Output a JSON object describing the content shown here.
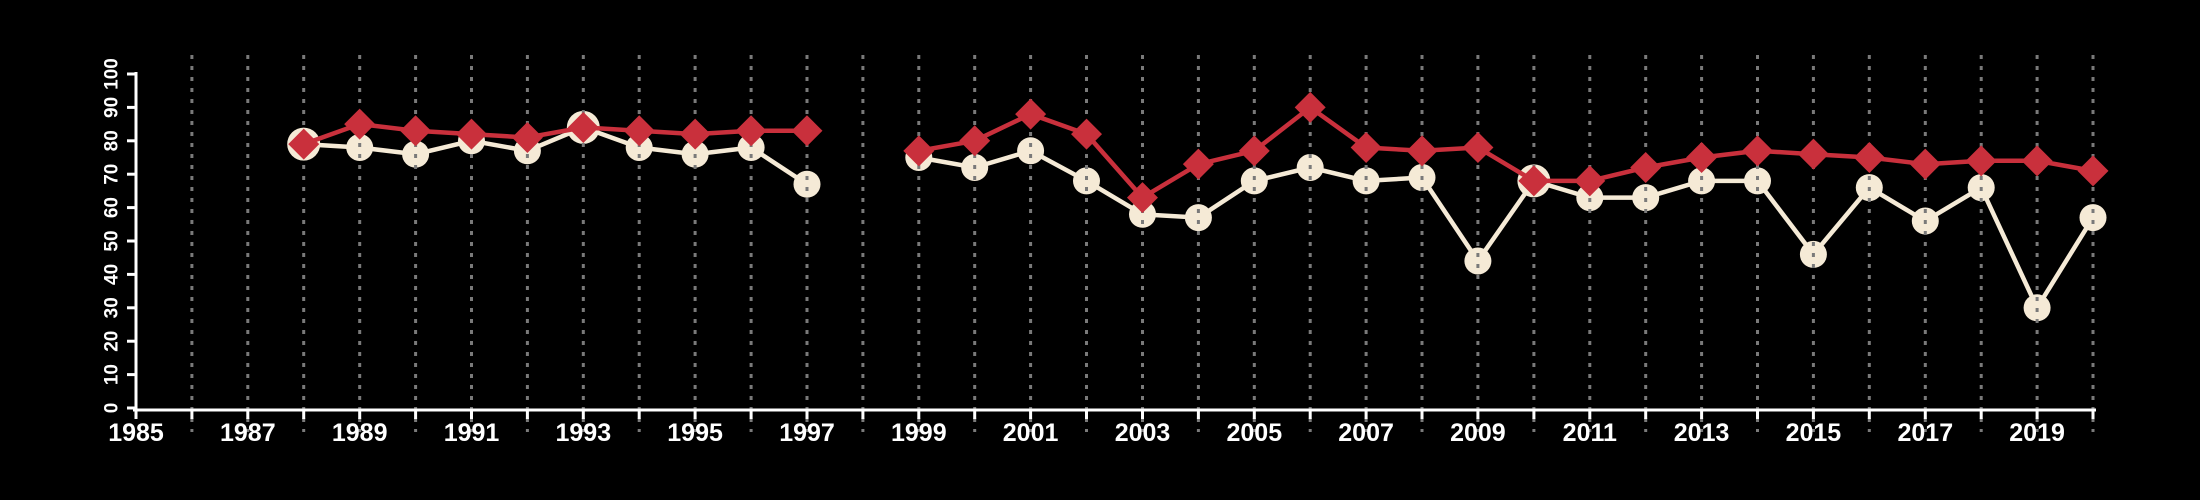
{
  "chart_data": {
    "type": "line",
    "title": "",
    "background": "#000000",
    "grid": {
      "style": "dashed-vertical",
      "color": "#7a7a7a",
      "per_year": true
    },
    "legend": "none",
    "x_axis": {
      "min": 1985,
      "max": 2020,
      "tick_every_year": true,
      "label_years": [
        1985,
        1987,
        1989,
        1991,
        1993,
        1995,
        1997,
        1999,
        2001,
        2003,
        2005,
        2007,
        2009,
        2011,
        2013,
        2015,
        2017,
        2019
      ],
      "axis_color": "#ffffff"
    },
    "y_axis": {
      "min": 0,
      "max": 100,
      "tick_values": [
        0,
        10,
        20,
        30,
        40,
        50,
        60,
        70,
        80,
        90,
        100
      ],
      "tick_labels": [
        "0",
        "10",
        "20",
        "30",
        "40",
        "50",
        "60",
        "70",
        "80",
        "90",
        "100"
      ],
      "labels_rotated": true,
      "axis_color": "#ffffff"
    },
    "data_gap_years": [
      1998
    ],
    "overlap_years": [
      1988,
      1993,
      2010
    ],
    "series": [
      {
        "name": "red-diamond-series",
        "marker": "diamond",
        "color": "#c9303c",
        "points": [
          [
            1988,
            79
          ],
          [
            1989,
            85
          ],
          [
            1990,
            83
          ],
          [
            1991,
            82
          ],
          [
            1992,
            81
          ],
          [
            1993,
            84
          ],
          [
            1994,
            83
          ],
          [
            1995,
            82
          ],
          [
            1996,
            83
          ],
          [
            1997,
            83
          ],
          [
            1999,
            77
          ],
          [
            2000,
            80
          ],
          [
            2001,
            88
          ],
          [
            2002,
            82
          ],
          [
            2003,
            63
          ],
          [
            2004,
            73
          ],
          [
            2005,
            77
          ],
          [
            2006,
            90
          ],
          [
            2007,
            78
          ],
          [
            2008,
            77
          ],
          [
            2009,
            78
          ],
          [
            2010,
            68
          ],
          [
            2011,
            68
          ],
          [
            2012,
            72
          ],
          [
            2013,
            75
          ],
          [
            2014,
            77
          ],
          [
            2015,
            76
          ],
          [
            2016,
            75
          ],
          [
            2017,
            73
          ],
          [
            2018,
            74
          ],
          [
            2019,
            74
          ],
          [
            2020,
            71
          ]
        ]
      },
      {
        "name": "cream-circle-series",
        "marker": "circle",
        "color": "#f5ead6",
        "points": [
          [
            1988,
            79
          ],
          [
            1989,
            78
          ],
          [
            1990,
            76
          ],
          [
            1991,
            80
          ],
          [
            1992,
            77
          ],
          [
            1993,
            84
          ],
          [
            1994,
            78
          ],
          [
            1995,
            76
          ],
          [
            1996,
            78
          ],
          [
            1997,
            67
          ],
          [
            1999,
            75
          ],
          [
            2000,
            72
          ],
          [
            2001,
            77
          ],
          [
            2002,
            68
          ],
          [
            2003,
            58
          ],
          [
            2004,
            57
          ],
          [
            2005,
            68
          ],
          [
            2006,
            72
          ],
          [
            2007,
            68
          ],
          [
            2008,
            69
          ],
          [
            2009,
            44
          ],
          [
            2010,
            68
          ],
          [
            2011,
            63
          ],
          [
            2012,
            63
          ],
          [
            2013,
            68
          ],
          [
            2014,
            68
          ],
          [
            2015,
            46
          ],
          [
            2016,
            66
          ],
          [
            2017,
            56
          ],
          [
            2018,
            66
          ],
          [
            2019,
            30
          ],
          [
            2020,
            57
          ]
        ]
      }
    ]
  }
}
